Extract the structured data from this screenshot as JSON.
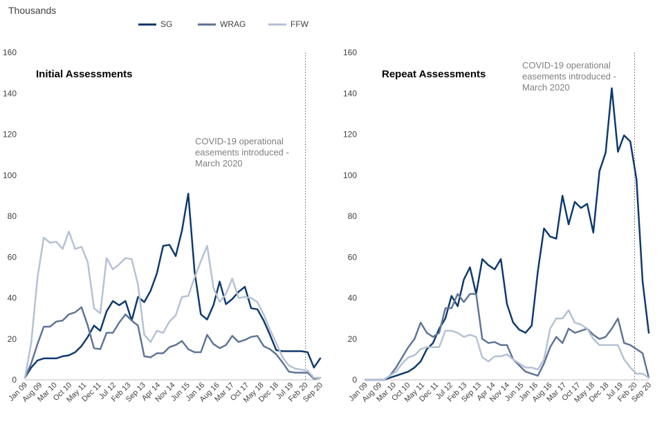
{
  "unit_label": "Thousands",
  "legend": [
    {
      "name": "SG",
      "color": "#0f3a6e"
    },
    {
      "name": "WRAG",
      "color": "#5f7596"
    },
    {
      "name": "FFW",
      "color": "#b5c1d4"
    }
  ],
  "chart_data": [
    {
      "type": "line",
      "title": "Initial Assessments",
      "annotation": [
        "COVID-19 operational",
        "easements introduced -",
        "March 2020"
      ],
      "ylim": [
        0,
        160
      ],
      "yticks": [
        0,
        20,
        40,
        60,
        80,
        100,
        120,
        140,
        160
      ],
      "x_tick_labels": [
        "Jan 09",
        "Aug 09",
        "Mar 10",
        "Oct 10",
        "May 11",
        "Dec 11",
        "Jul 12",
        "Feb 13",
        "Sep 13",
        "Apr 14",
        "Nov 14",
        "Jun 15",
        "Jan 16",
        "Aug 16",
        "Mar 17",
        "Oct 17",
        "May 18",
        "Dec 18",
        "Jul 19",
        "Feb 20",
        "Sep 20"
      ],
      "x_tick_quarter_index": [
        0,
        2,
        4,
        6,
        8,
        10,
        12,
        14,
        16,
        18,
        20,
        22,
        24,
        26,
        28,
        30,
        32,
        34,
        36,
        38,
        40
      ],
      "covid_marker_quarter_index": 38,
      "series": [
        {
          "name": "SG",
          "values": [
            1,
            6,
            9.5,
            10.5,
            10.5,
            10.5,
            11.5,
            12,
            13.5,
            16.5,
            21,
            26.5,
            24,
            33.5,
            38.5,
            36.5,
            38.5,
            29,
            40.5,
            38,
            43.5,
            52,
            65.5,
            66,
            60.5,
            73,
            91,
            53,
            32,
            29.5,
            36.5,
            48,
            37,
            39.5,
            43,
            45.5,
            35,
            34.5,
            29,
            22,
            14.5,
            14,
            14,
            14,
            14,
            13.5,
            6,
            10.5
          ]
        },
        {
          "name": "WRAG",
          "values": [
            1,
            8,
            17.5,
            26,
            26,
            28.5,
            29,
            32,
            33,
            35.5,
            26.5,
            15.5,
            15,
            23,
            23,
            28,
            32,
            29,
            26.5,
            11.5,
            11,
            13,
            13,
            16,
            17,
            19,
            15,
            13.5,
            13.5,
            22,
            17.5,
            15.5,
            17,
            21.5,
            18.5,
            19.5,
            21,
            21.5,
            16.5,
            15,
            12.5,
            8.5,
            4,
            3.5,
            3.5,
            3.5,
            0.5,
            1
          ]
        },
        {
          "name": "FFW",
          "values": [
            1,
            18,
            50,
            69.5,
            67,
            67.5,
            64,
            72.5,
            64,
            65,
            57.5,
            35,
            32.5,
            59.5,
            54,
            56.5,
            59.5,
            59,
            46.5,
            22,
            18.5,
            24,
            23,
            28.5,
            31.5,
            40.5,
            41,
            50,
            58,
            65.5,
            45,
            38,
            42,
            49.5,
            40,
            40.5,
            40,
            38,
            32,
            24.5,
            18,
            11,
            7,
            5.5,
            5,
            4.5,
            1,
            1
          ]
        }
      ]
    },
    {
      "type": "line",
      "title": "Repeat Assessments",
      "annotation": [
        "COVID-19 operational",
        "easements introduced -",
        "March 2020"
      ],
      "ylim": [
        0,
        160
      ],
      "yticks": [
        0,
        20,
        40,
        60,
        80,
        100,
        120,
        140,
        160
      ],
      "x_tick_labels": [
        "Jan 09",
        "Aug 09",
        "Mar 10",
        "Oct 10",
        "May 11",
        "Dec 11",
        "Jul 12",
        "Feb 13",
        "Sep 13",
        "Apr 14",
        "Nov 14",
        "Jun 15",
        "Jan 16",
        "Aug 16",
        "Mar 17",
        "Oct 17",
        "May 18",
        "Dec 18",
        "Jul 19",
        "Feb 20",
        "Sep 20"
      ],
      "x_tick_quarter_index": [
        0,
        2,
        4,
        6,
        8,
        10,
        12,
        14,
        16,
        18,
        20,
        22,
        24,
        26,
        28,
        30,
        32,
        34,
        36,
        38,
        40
      ],
      "covid_marker_quarter_index": 38,
      "series": [
        {
          "name": "SG",
          "values": [
            0,
            0,
            0,
            0,
            1,
            2,
            3,
            4,
            6,
            9,
            15,
            18,
            25,
            30,
            41,
            36,
            49,
            55,
            42,
            59,
            56,
            54,
            59,
            37,
            28,
            24.5,
            23,
            26.5,
            53,
            74,
            70,
            69,
            90,
            76,
            87,
            84,
            86,
            72,
            102,
            111,
            142.5,
            111.5,
            119.5,
            116.5,
            98,
            48,
            23
          ]
        },
        {
          "name": "WRAG",
          "values": [
            0,
            0,
            0,
            0,
            2,
            6,
            11,
            16,
            20,
            28,
            23,
            21,
            23,
            35,
            35,
            42,
            38,
            42,
            42,
            20,
            18,
            18.5,
            17,
            17,
            10,
            7,
            4,
            3,
            2,
            8,
            16,
            21,
            18,
            25,
            23,
            24,
            25,
            22,
            20,
            21,
            25,
            30,
            18,
            17,
            15,
            13,
            1
          ]
        },
        {
          "name": "FFW",
          "values": [
            0,
            0,
            0,
            0,
            2,
            4,
            8,
            11,
            12,
            15,
            16,
            16,
            16,
            24,
            24,
            23,
            21,
            22,
            21,
            11,
            9,
            11.5,
            11.5,
            12.5,
            10,
            8,
            6,
            6,
            5,
            10,
            25,
            30,
            30,
            34,
            28,
            27,
            25,
            20,
            17,
            17,
            17,
            17,
            10,
            6,
            3,
            3,
            1
          ]
        }
      ]
    }
  ]
}
